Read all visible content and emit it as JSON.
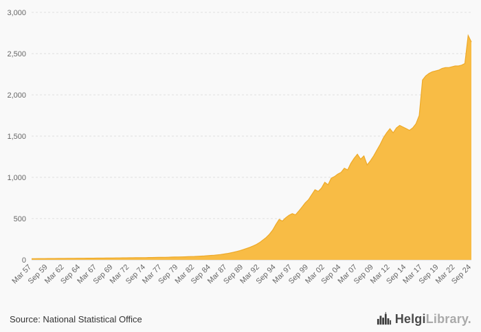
{
  "chart_data": {
    "type": "area",
    "title": "",
    "xlabel": "",
    "ylabel": "",
    "ylim": [
      0,
      3000
    ],
    "ytick_values": [
      0,
      500,
      1000,
      1500,
      2000,
      2500,
      3000
    ],
    "ytick_labels": [
      "0",
      "500",
      "1,000",
      "1,500",
      "2,000",
      "2,500",
      "3,000"
    ],
    "grid": true,
    "legend": false,
    "fill_color": "#f8bc45",
    "line_color": "#eda928",
    "x_tick_every": 5,
    "x_tick_labels": [
      "Mar 57",
      "Sep 59",
      "Mar 62",
      "Sep 64",
      "Mar 67",
      "Sep 69",
      "Mar 72",
      "Sep 74",
      "Mar 77",
      "Sep 79",
      "Mar 82",
      "Sep 84",
      "Mar 87",
      "Sep 89",
      "Mar 92",
      "Sep 94",
      "Mar 97",
      "Sep 99",
      "Mar 02",
      "Sep 04",
      "Mar 07",
      "Sep 09",
      "Mar 12",
      "Sep 14",
      "Mar 17",
      "Sep 19",
      "Mar 22",
      "Sep 24"
    ],
    "x_period_labels_note": "semiannual points Mar/Sep 1957-2024",
    "values": [
      14,
      14,
      15,
      15,
      15,
      16,
      16,
      16,
      17,
      17,
      17,
      18,
      18,
      18,
      19,
      19,
      19,
      20,
      20,
      20,
      21,
      21,
      21,
      22,
      22,
      22,
      23,
      23,
      24,
      24,
      25,
      25,
      26,
      26,
      27,
      27,
      28,
      28,
      29,
      30,
      30,
      31,
      32,
      33,
      34,
      35,
      36,
      37,
      38,
      40,
      41,
      43,
      45,
      47,
      50,
      53,
      56,
      60,
      64,
      70,
      76,
      84,
      92,
      102,
      112,
      124,
      138,
      152,
      168,
      186,
      210,
      240,
      270,
      310,
      360,
      430,
      490,
      470,
      510,
      540,
      560,
      545,
      590,
      640,
      690,
      730,
      790,
      850,
      830,
      870,
      940,
      910,
      990,
      1010,
      1040,
      1060,
      1110,
      1090,
      1170,
      1230,
      1280,
      1220,
      1260,
      1150,
      1200,
      1260,
      1330,
      1400,
      1480,
      1540,
      1590,
      1540,
      1600,
      1630,
      1610,
      1590,
      1570,
      1600,
      1650,
      1750,
      2180,
      2230,
      2260,
      2280,
      2290,
      2300,
      2320,
      2330,
      2330,
      2340,
      2350,
      2350,
      2360,
      2380,
      2720,
      2640
    ]
  },
  "footer": {
    "source": "Source: National Statistical Office",
    "logo": {
      "icon": "skyline-bars-icon",
      "brand_primary": "Helgi",
      "brand_secondary": "Library",
      "suffix": "."
    }
  }
}
